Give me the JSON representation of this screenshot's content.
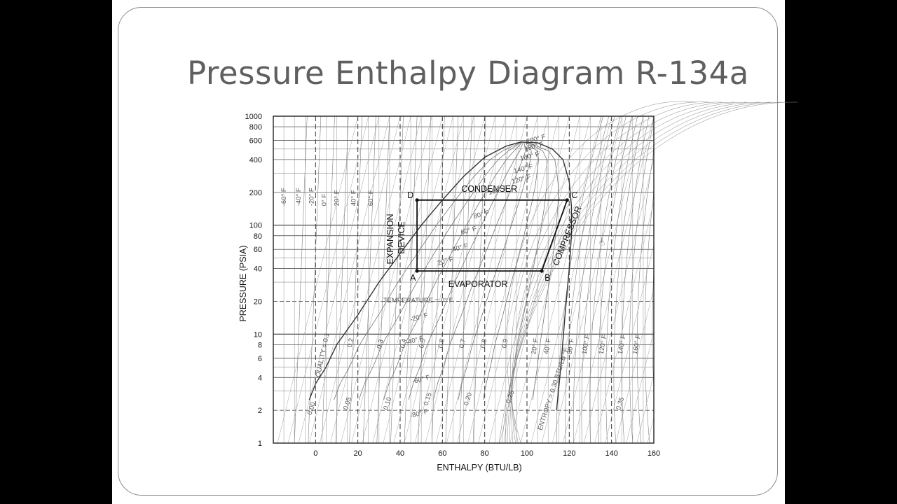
{
  "slide": {
    "title": "Pressure Enthalpy Diagram R-134a"
  },
  "chart_data": {
    "type": "line",
    "title": "Pressure Enthalpy Diagram R-134a",
    "xlabel": "ENTHALPY (BTU/LB)",
    "ylabel": "PRESSURE (PSIA)",
    "xlim": [
      -20,
      160
    ],
    "ylim": [
      1,
      1000
    ],
    "y_scale": "log",
    "x_ticks": [
      0,
      20,
      40,
      60,
      80,
      100,
      120,
      140,
      160
    ],
    "y_ticks": [
      1,
      2,
      4,
      6,
      8,
      10,
      20,
      40,
      60,
      80,
      100,
      200,
      400,
      600,
      800,
      1000
    ],
    "grid": true,
    "series": [
      {
        "name": "cycle",
        "points": [
          {
            "label": "A",
            "h": 48,
            "p": 38
          },
          {
            "label": "B",
            "h": 107,
            "p": 38
          },
          {
            "label": "C",
            "h": 119,
            "p": 170
          },
          {
            "label": "D",
            "h": 48,
            "p": 170
          }
        ]
      }
    ],
    "process_labels": {
      "condenser": "CONDENSER",
      "evaporator": "EVAPORATOR",
      "compressor": "COMPRESSOR",
      "expansion_1": "EXPANSION",
      "expansion_2": "DEVICE"
    },
    "saturated_liquid": [
      {
        "h": -3,
        "p": 2.5
      },
      {
        "h": 0,
        "p": 3.5
      },
      {
        "h": 5,
        "p": 5
      },
      {
        "h": 10,
        "p": 8
      },
      {
        "h": 20,
        "p": 15
      },
      {
        "h": 30,
        "p": 30
      },
      {
        "h": 40,
        "p": 55
      },
      {
        "h": 50,
        "p": 100
      },
      {
        "h": 60,
        "p": 170
      },
      {
        "h": 70,
        "p": 280
      },
      {
        "h": 80,
        "p": 420
      },
      {
        "h": 90,
        "p": 530
      },
      {
        "h": 97,
        "p": 580
      }
    ],
    "saturated_vapor": [
      {
        "h": 97,
        "p": 580
      },
      {
        "h": 105,
        "p": 570
      },
      {
        "h": 112,
        "p": 500
      },
      {
        "h": 117,
        "p": 400
      },
      {
        "h": 120,
        "p": 250
      },
      {
        "h": 121,
        "p": 150
      },
      {
        "h": 121,
        "p": 80
      },
      {
        "h": 120,
        "p": 40
      },
      {
        "h": 118,
        "p": 15
      },
      {
        "h": 116,
        "p": 5
      },
      {
        "h": 114,
        "p": 2
      }
    ],
    "isotherm_labels": [
      "-60° F",
      "-40° F",
      "-20° F",
      "0° F",
      "20° F",
      "40° F",
      "60° F",
      "80° F",
      "100° F",
      "120° F",
      "140° F",
      "160° F",
      "180° F",
      "200° F",
      "220° F",
      "240° F",
      "260° F",
      "280° F",
      "300° F"
    ],
    "quality_labels": [
      "QUALITY = 0.1",
      "0.2",
      "0.3",
      "0.4",
      "0.5",
      "0.6",
      "0.7",
      "0.8",
      "0.9"
    ],
    "entropy_labels": [
      "0.00",
      "0.05",
      "0.10",
      "0.15",
      "0.20",
      "0.25",
      "ENTROPY = 0.30 BTU/LB °F",
      "0.35"
    ],
    "temperature_label": "TEMPERATURE = 0° F",
    "isotherm_annotations": [
      "-20° F",
      "20° F",
      "40° F",
      "60° F",
      "80° F",
      "100° F",
      "120° F",
      "140° F",
      "160° F",
      "180° F",
      "200° F",
      "-40° F",
      "-60° F",
      "-80° F"
    ]
  }
}
